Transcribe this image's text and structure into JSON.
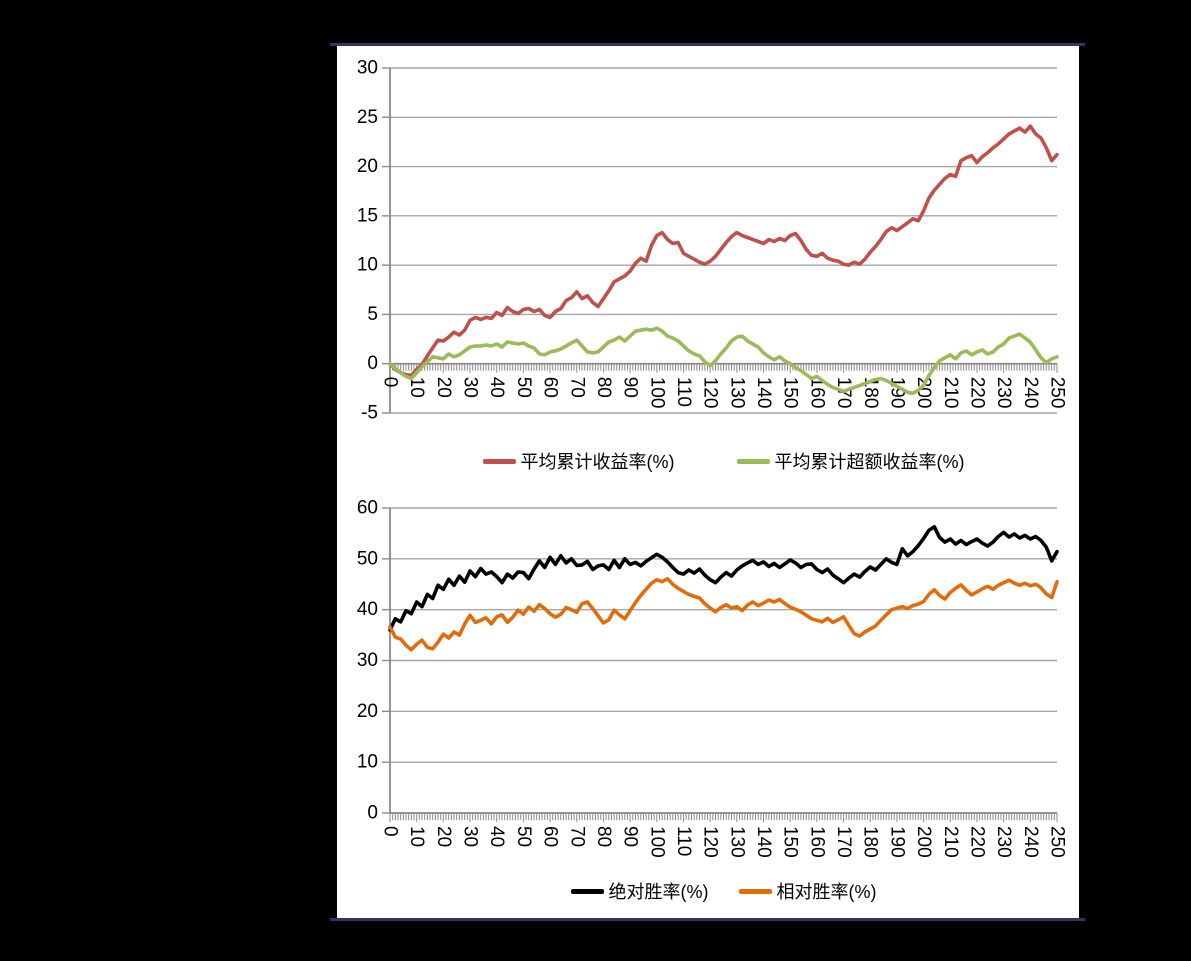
{
  "colors": {
    "background": "#000000",
    "panel": "#ffffff",
    "accent_rule": "#34345f",
    "grid": "#a6a6a6",
    "axis": "#8a8a8a",
    "tick_label": "#000000",
    "series_red": "#c0504d",
    "series_green": "#9bbb59",
    "series_black": "#000000",
    "series_orange": "#e36c0a"
  },
  "charts": [
    {
      "id": "cumulative-return",
      "chart_data": {
        "type": "line",
        "title": "",
        "grid": true,
        "legend_position": "bottom",
        "x_axis": {
          "min": 0,
          "max": 250,
          "tick_step": 10,
          "minor_tick_every": 1,
          "tick_labels": [
            "0",
            "10",
            "20",
            "30",
            "40",
            "50",
            "60",
            "70",
            "80",
            "90",
            "100",
            "110",
            "120",
            "130",
            "140",
            "150",
            "160",
            "170",
            "180",
            "190",
            "200",
            "210",
            "220",
            "230",
            "240",
            "250"
          ]
        },
        "y_axis": {
          "min": -5,
          "max": 30,
          "tick_step": 5,
          "tick_labels": [
            "30",
            "25",
            "20",
            "15",
            "10",
            "5",
            "0",
            "-5"
          ]
        },
        "x_start": 0,
        "x_step": 2,
        "series": [
          {
            "name": "平均累计收益率(%)",
            "color": "#c0504d",
            "values": [
              0.0,
              -0.6,
              -0.9,
              -1.1,
              -1.2,
              -0.6,
              -0.1,
              0.8,
              1.6,
              2.4,
              2.3,
              2.7,
              3.2,
              2.9,
              3.4,
              4.4,
              4.7,
              4.5,
              4.7,
              4.6,
              5.2,
              4.9,
              5.7,
              5.3,
              5.1,
              5.5,
              5.6,
              5.3,
              5.5,
              4.9,
              4.7,
              5.3,
              5.6,
              6.4,
              6.7,
              7.3,
              6.6,
              6.9,
              6.2,
              5.8,
              6.6,
              7.4,
              8.3,
              8.6,
              8.9,
              9.4,
              10.2,
              10.7,
              10.4,
              12.0,
              13.0,
              13.3,
              12.6,
              12.2,
              12.3,
              11.2,
              10.9,
              10.6,
              10.3,
              10.1,
              10.4,
              10.9,
              11.6,
              12.3,
              12.9,
              13.3,
              13.0,
              12.8,
              12.6,
              12.4,
              12.2,
              12.6,
              12.4,
              12.7,
              12.5,
              13.0,
              13.2,
              12.5,
              11.6,
              11.0,
              10.9,
              11.2,
              10.7,
              10.5,
              10.4,
              10.1,
              10.0,
              10.3,
              10.1,
              10.6,
              11.3,
              11.9,
              12.6,
              13.4,
              13.8,
              13.5,
              13.9,
              14.3,
              14.7,
              14.5,
              15.5,
              16.8,
              17.6,
              18.2,
              18.8,
              19.2,
              19.0,
              20.6,
              20.9,
              21.1,
              20.4,
              21.0,
              21.4,
              21.9,
              22.3,
              22.8,
              23.3,
              23.6,
              23.9,
              23.5,
              24.1,
              23.3,
              22.9,
              21.9,
              20.6,
              21.2
            ]
          },
          {
            "name": "平均累计超额收益率(%)",
            "color": "#9bbb59",
            "values": [
              0.0,
              -0.5,
              -0.9,
              -1.3,
              -1.5,
              -0.9,
              -0.3,
              0.2,
              0.7,
              0.6,
              0.5,
              1.0,
              0.7,
              0.9,
              1.3,
              1.7,
              1.8,
              1.8,
              1.9,
              1.8,
              2.0,
              1.7,
              2.2,
              2.1,
              2.0,
              2.1,
              1.8,
              1.6,
              1.0,
              0.9,
              1.2,
              1.3,
              1.5,
              1.8,
              2.1,
              2.4,
              1.8,
              1.2,
              1.1,
              1.2,
              1.7,
              2.2,
              2.4,
              2.7,
              2.3,
              2.8,
              3.3,
              3.4,
              3.5,
              3.4,
              3.6,
              3.3,
              2.8,
              2.6,
              2.3,
              1.8,
              1.3,
              1.0,
              0.8,
              0.2,
              -0.2,
              0.3,
              1.0,
              1.6,
              2.3,
              2.7,
              2.8,
              2.3,
              2.0,
              1.7,
              1.1,
              0.7,
              0.4,
              0.7,
              0.3,
              0.0,
              -0.4,
              -0.7,
              -1.1,
              -1.5,
              -1.3,
              -1.7,
              -2.1,
              -2.4,
              -2.6,
              -2.8,
              -2.6,
              -2.4,
              -2.2,
              -2.0,
              -1.8,
              -1.6,
              -1.5,
              -1.7,
              -2.0,
              -2.3,
              -2.6,
              -2.9,
              -3.0,
              -2.7,
              -2.2,
              -1.2,
              -0.4,
              0.3,
              0.6,
              0.9,
              0.5,
              1.1,
              1.3,
              0.9,
              1.2,
              1.4,
              1.0,
              1.2,
              1.7,
              2.0,
              2.6,
              2.8,
              3.0,
              2.6,
              2.2,
              1.4,
              0.6,
              0.1,
              0.5,
              0.7
            ]
          }
        ]
      }
    },
    {
      "id": "win-rate",
      "chart_data": {
        "type": "line",
        "title": "",
        "grid": true,
        "legend_position": "bottom",
        "x_axis": {
          "min": 0,
          "max": 250,
          "tick_step": 10,
          "minor_tick_every": 1,
          "tick_labels": [
            "0",
            "10",
            "20",
            "30",
            "40",
            "50",
            "60",
            "70",
            "80",
            "90",
            "100",
            "110",
            "120",
            "130",
            "140",
            "150",
            "160",
            "170",
            "180",
            "190",
            "200",
            "210",
            "220",
            "230",
            "240",
            "250"
          ]
        },
        "y_axis": {
          "min": 0,
          "max": 60,
          "tick_step": 10,
          "tick_labels": [
            "60",
            "50",
            "40",
            "30",
            "20",
            "10",
            "0"
          ]
        },
        "x_start": 0,
        "x_step": 2,
        "series": [
          {
            "name": "绝对胜率(%)",
            "color": "#000000",
            "values": [
              36.0,
              38.2,
              37.6,
              39.8,
              39.2,
              41.5,
              40.6,
              43.0,
              42.2,
              44.8,
              44.0,
              46.0,
              44.8,
              46.6,
              45.4,
              47.6,
              46.5,
              48.1,
              47.0,
              47.4,
              46.5,
              45.3,
              47.0,
              46.2,
              47.4,
              47.3,
              46.1,
              48.0,
              49.6,
              48.3,
              50.3,
              48.9,
              50.6,
              49.2,
              50.0,
              48.7,
              48.8,
              49.5,
              47.9,
              48.6,
              48.8,
              47.9,
              49.7,
              48.3,
              50.0,
              48.9,
              49.3,
              48.6,
              49.5,
              50.2,
              50.9,
              50.3,
              49.4,
              48.3,
              47.3,
              47.0,
              47.8,
              47.2,
              48.0,
              46.8,
              45.9,
              45.3,
              46.4,
              47.3,
              46.6,
              47.8,
              48.6,
              49.2,
              49.7,
              48.9,
              49.4,
              48.5,
              49.1,
              48.3,
              49.0,
              49.8,
              49.2,
              48.3,
              48.9,
              49.0,
              47.9,
              47.3,
              48.0,
              46.8,
              46.1,
              45.3,
              46.2,
              47.0,
              46.4,
              47.5,
              48.4,
              47.8,
              48.9,
              50.0,
              49.3,
              48.9,
              52.0,
              50.6,
              51.4,
              52.6,
              54.0,
              55.6,
              56.3,
              54.2,
              53.3,
              53.9,
              52.9,
              53.6,
              52.8,
              53.4,
              53.9,
              53.1,
              52.5,
              53.3,
              54.4,
              55.2,
              54.3,
              54.9,
              54.1,
              54.6,
              53.9,
              54.4,
              53.6,
              52.3,
              49.6,
              51.4
            ]
          },
          {
            "name": "相对胜率(%)",
            "color": "#e36c0a",
            "values": [
              36.6,
              34.6,
              34.2,
              33.0,
              32.1,
              33.2,
              34.0,
              32.6,
              32.3,
              33.6,
              35.2,
              34.4,
              35.6,
              35.0,
              37.2,
              38.9,
              37.5,
              37.9,
              38.4,
              37.2,
              38.6,
              39.0,
              37.5,
              38.5,
              39.9,
              39.1,
              40.5,
              39.7,
              41.0,
              40.2,
              39.2,
              38.5,
              39.1,
              40.4,
              40.0,
              39.5,
              41.2,
              41.5,
              40.2,
              38.8,
              37.4,
              38.0,
              39.9,
              39.0,
              38.2,
              39.8,
              41.4,
              42.8,
              44.0,
              45.2,
              45.9,
              45.5,
              46.1,
              45.0,
              44.2,
              43.6,
              43.0,
              42.6,
              42.3,
              41.2,
              40.3,
              39.6,
              40.4,
              41.0,
              40.3,
              40.6,
              39.8,
              40.9,
              41.5,
              40.8,
              41.3,
              41.9,
              41.5,
              42.0,
              41.2,
              40.5,
              40.1,
              39.6,
              38.9,
              38.2,
              37.9,
              37.6,
              38.3,
              37.5,
              38.0,
              38.6,
              36.9,
              35.3,
              34.8,
              35.6,
              36.2,
              36.8,
              37.9,
              39.0,
              40.0,
              40.3,
              40.6,
              40.2,
              40.8,
              41.1,
              41.6,
              43.0,
              43.9,
              42.8,
              42.1,
              43.4,
              44.2,
              44.9,
              43.8,
              42.9,
              43.5,
              44.1,
              44.6,
              44.0,
              44.8,
              45.3,
              45.8,
              45.2,
              44.8,
              45.2,
              44.7,
              45.0,
              44.3,
              43.1,
              42.4,
              45.5
            ]
          }
        ]
      }
    }
  ]
}
